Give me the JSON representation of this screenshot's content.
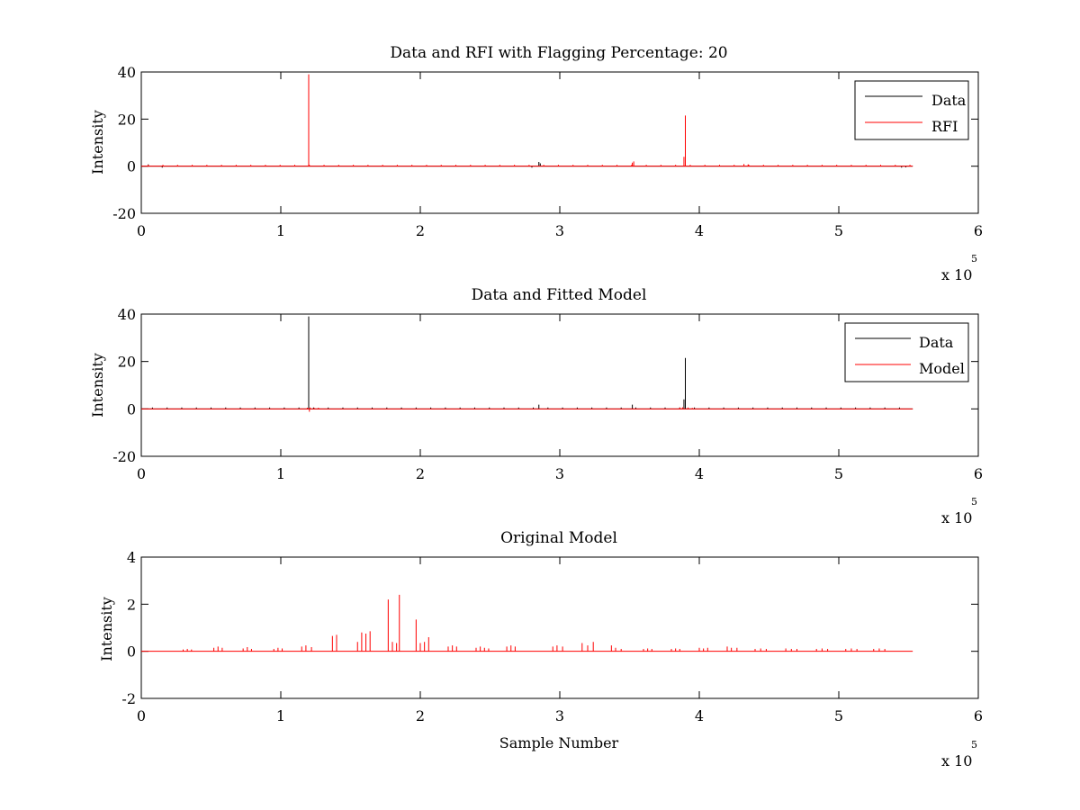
{
  "figure": {
    "background": "#ffffff",
    "colors": {
      "data": "#000000",
      "rfi": "#ff0000",
      "model": "#ff0000"
    }
  },
  "chart_data": [
    {
      "type": "line",
      "title": "Data and RFI with Flagging Percentage: 20",
      "xlabel": "",
      "ylabel": "Intensity",
      "xlim": [
        0,
        600000
      ],
      "ylim": [
        -20,
        40
      ],
      "xticks": [
        0,
        100000,
        200000,
        300000,
        400000,
        500000,
        600000
      ],
      "xtick_labels": [
        "0",
        "1",
        "2",
        "3",
        "4",
        "5",
        "6"
      ],
      "yticks": [
        -20,
        0,
        20,
        40
      ],
      "ytick_labels": [
        "-20",
        "0",
        "20",
        "40"
      ],
      "x_multiplier": {
        "base": "x 10",
        "exponent": "5"
      },
      "x_data_max": 553000,
      "grid": false,
      "legend_position": "top-right",
      "series": [
        {
          "name": "Data",
          "color": "#000000",
          "baseline": 0,
          "spikes": [
            [
              5000,
              0.8
            ],
            [
              15000,
              -0.6
            ],
            [
              280000,
              -0.6
            ],
            [
              285000,
              1.8
            ],
            [
              286000,
              1.2
            ],
            [
              545000,
              -0.6
            ],
            [
              548000,
              -0.5
            ]
          ]
        },
        {
          "name": "RFI",
          "color": "#ff0000",
          "baseline": 0,
          "periodic_spikes": {
            "start": 5000,
            "step": 10500,
            "height": 0.6
          },
          "spikes": [
            [
              120000,
              39
            ],
            [
              352000,
              1.5
            ],
            [
              353000,
              2.0
            ],
            [
              389000,
              4.0
            ],
            [
              390000,
              21.5
            ],
            [
              432000,
              0.9
            ],
            [
              435000,
              0.8
            ]
          ]
        }
      ]
    },
    {
      "type": "line",
      "title": "Data and Fitted Model",
      "xlabel": "",
      "ylabel": "Intensity",
      "xlim": [
        0,
        600000
      ],
      "ylim": [
        -20,
        40
      ],
      "xticks": [
        0,
        100000,
        200000,
        300000,
        400000,
        500000,
        600000
      ],
      "xtick_labels": [
        "0",
        "1",
        "2",
        "3",
        "4",
        "5",
        "6"
      ],
      "yticks": [
        -20,
        0,
        20,
        40
      ],
      "ytick_labels": [
        "-20",
        "0",
        "20",
        "40"
      ],
      "x_multiplier": {
        "base": "x 10",
        "exponent": "5"
      },
      "x_data_max": 553000,
      "grid": false,
      "legend_position": "top-right",
      "series": [
        {
          "name": "Data",
          "color": "#000000",
          "baseline": 0,
          "periodic_spikes": {
            "start": 8000,
            "step": 10500,
            "height": 0.6
          },
          "spikes": [
            [
              120000,
              39
            ],
            [
              285000,
              1.8
            ],
            [
              352000,
              1.8
            ],
            [
              389000,
              4.0
            ],
            [
              390000,
              21.5
            ]
          ]
        },
        {
          "name": "Model",
          "color": "#ff0000",
          "baseline": 0,
          "spikes": [
            [
              119000,
              0.5
            ],
            [
              120500,
              -1.2
            ],
            [
              121000,
              0.6
            ],
            [
              124000,
              0.4
            ],
            [
              127000,
              0.5
            ],
            [
              386000,
              0.6
            ],
            [
              388000,
              0.7
            ],
            [
              392000,
              0.6
            ],
            [
              395000,
              0.4
            ]
          ]
        }
      ]
    },
    {
      "type": "line",
      "title": "Original Model",
      "xlabel": "Sample Number",
      "ylabel": "Intensity",
      "xlim": [
        0,
        600000
      ],
      "ylim": [
        -2,
        4
      ],
      "xticks": [
        0,
        100000,
        200000,
        300000,
        400000,
        500000,
        600000
      ],
      "xtick_labels": [
        "0",
        "1",
        "2",
        "3",
        "4",
        "5",
        "6"
      ],
      "yticks": [
        -2,
        0,
        2,
        4
      ],
      "ytick_labels": [
        "-2",
        "0",
        "2",
        "4"
      ],
      "x_multiplier": {
        "base": "x 10",
        "exponent": "5"
      },
      "x_data_max": 553000,
      "grid": false,
      "legend_position": "none",
      "series": [
        {
          "name": "",
          "color": "#ff0000",
          "baseline": 0,
          "spikes": [
            [
              30000,
              0.08
            ],
            [
              33000,
              0.1
            ],
            [
              36000,
              0.08
            ],
            [
              52000,
              0.15
            ],
            [
              55000,
              0.2
            ],
            [
              58000,
              0.15
            ],
            [
              73000,
              0.12
            ],
            [
              76000,
              0.18
            ],
            [
              79000,
              0.1
            ],
            [
              95000,
              0.1
            ],
            [
              98000,
              0.15
            ],
            [
              101000,
              0.12
            ],
            [
              115000,
              0.2
            ],
            [
              118000,
              0.25
            ],
            [
              122000,
              0.18
            ],
            [
              137000,
              0.65
            ],
            [
              140000,
              0.7
            ],
            [
              155000,
              0.4
            ],
            [
              158000,
              0.8
            ],
            [
              161000,
              0.75
            ],
            [
              164000,
              0.85
            ],
            [
              177000,
              2.2
            ],
            [
              180000,
              0.4
            ],
            [
              183000,
              0.35
            ],
            [
              185000,
              2.4
            ],
            [
              197000,
              1.35
            ],
            [
              200000,
              0.35
            ],
            [
              203000,
              0.4
            ],
            [
              206000,
              0.6
            ],
            [
              220000,
              0.2
            ],
            [
              223000,
              0.25
            ],
            [
              226000,
              0.2
            ],
            [
              240000,
              0.15
            ],
            [
              243000,
              0.2
            ],
            [
              246000,
              0.15
            ],
            [
              249000,
              0.12
            ],
            [
              262000,
              0.2
            ],
            [
              265000,
              0.25
            ],
            [
              268000,
              0.2
            ],
            [
              295000,
              0.2
            ],
            [
              298000,
              0.25
            ],
            [
              302000,
              0.2
            ],
            [
              316000,
              0.35
            ],
            [
              320000,
              0.25
            ],
            [
              324000,
              0.4
            ],
            [
              337000,
              0.25
            ],
            [
              340000,
              0.15
            ],
            [
              344000,
              0.1
            ],
            [
              360000,
              0.1
            ],
            [
              363000,
              0.12
            ],
            [
              366000,
              0.1
            ],
            [
              380000,
              0.1
            ],
            [
              383000,
              0.12
            ],
            [
              386000,
              0.1
            ],
            [
              400000,
              0.15
            ],
            [
              403000,
              0.12
            ],
            [
              406000,
              0.15
            ],
            [
              420000,
              0.2
            ],
            [
              423000,
              0.15
            ],
            [
              427000,
              0.15
            ],
            [
              440000,
              0.1
            ],
            [
              444000,
              0.12
            ],
            [
              448000,
              0.1
            ],
            [
              462000,
              0.12
            ],
            [
              466000,
              0.1
            ],
            [
              470000,
              0.1
            ],
            [
              484000,
              0.1
            ],
            [
              488000,
              0.12
            ],
            [
              492000,
              0.1
            ],
            [
              505000,
              0.1
            ],
            [
              509000,
              0.12
            ],
            [
              513000,
              0.1
            ],
            [
              525000,
              0.1
            ],
            [
              529000,
              0.12
            ],
            [
              533000,
              0.1
            ]
          ]
        }
      ]
    }
  ]
}
